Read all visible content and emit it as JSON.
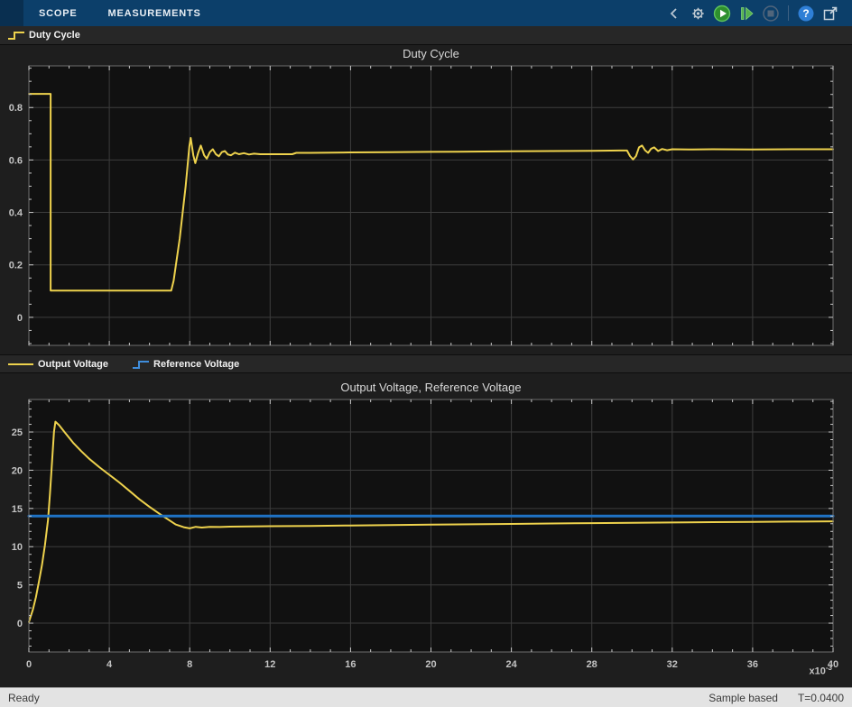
{
  "toolbar": {
    "tabs": [
      {
        "label": "SCOPE"
      },
      {
        "label": "MEASUREMENTS"
      }
    ],
    "icons": [
      "collapse-chevron-icon",
      "settings-gear-icon",
      "run-icon",
      "step-forward-icon",
      "stop-icon",
      "help-icon",
      "popout-icon"
    ]
  },
  "legend1": {
    "items": [
      {
        "label": "Duty Cycle",
        "color": "#eed24d",
        "glyph": "step"
      }
    ]
  },
  "legend2": {
    "items": [
      {
        "label": "Output Voltage",
        "color": "#eed24d",
        "glyph": "line"
      },
      {
        "label": "Reference Voltage",
        "color": "#3f8ddb",
        "glyph": "step"
      }
    ]
  },
  "statusbar": {
    "ready": "Ready",
    "sample_mode": "Sample based",
    "time": "T=0.0400"
  },
  "colors": {
    "toolstrip_bg": "#0c3f6a",
    "figure_bg": "#1e1e1e",
    "plot_bg": "#111111",
    "grid": "#3d3d3d",
    "axis": "#6e6e6e",
    "tick": "#c8c8c8",
    "yellow": "#eed24d",
    "blue": "#1f72c4",
    "status_bg": "#e3e3e3"
  },
  "chart_data": [
    {
      "type": "line",
      "title": "Duty Cycle",
      "xlabel": "",
      "ylabel": "",
      "xlim": [
        0,
        40
      ],
      "ylim": [
        -0.107,
        0.959
      ],
      "xticks": [
        0,
        4,
        8,
        12,
        16,
        20,
        24,
        28,
        32,
        36,
        40
      ],
      "yticks": [
        0,
        0.2,
        0.4,
        0.6,
        0.8
      ],
      "x_minor": 1,
      "y_minor": 0.05,
      "grid": true,
      "show_x_labels": false,
      "x_units_note": "time axis shared with lower plot, x10^-3 s",
      "series": [
        {
          "name": "Duty Cycle",
          "color": "#eed24d",
          "width": 2,
          "points": [
            [
              0,
              0.852
            ],
            [
              1.08,
              0.852
            ],
            [
              1.08,
              0.102
            ],
            [
              7.08,
              0.102
            ],
            [
              7.2,
              0.14
            ],
            [
              7.5,
              0.3
            ],
            [
              7.8,
              0.5
            ],
            [
              7.98,
              0.652
            ],
            [
              8.05,
              0.684
            ],
            [
              8.18,
              0.618
            ],
            [
              8.28,
              0.588
            ],
            [
              8.42,
              0.628
            ],
            [
              8.55,
              0.655
            ],
            [
              8.72,
              0.618
            ],
            [
              8.85,
              0.605
            ],
            [
              9.0,
              0.63
            ],
            [
              9.15,
              0.641
            ],
            [
              9.3,
              0.622
            ],
            [
              9.45,
              0.614
            ],
            [
              9.6,
              0.63
            ],
            [
              9.75,
              0.634
            ],
            [
              9.9,
              0.621
            ],
            [
              10.05,
              0.618
            ],
            [
              10.25,
              0.628
            ],
            [
              10.45,
              0.622
            ],
            [
              10.7,
              0.626
            ],
            [
              10.95,
              0.621
            ],
            [
              11.2,
              0.624
            ],
            [
              11.5,
              0.622
            ],
            [
              12,
              0.622
            ],
            [
              13.1,
              0.622
            ],
            [
              13.3,
              0.627
            ],
            [
              14,
              0.627
            ],
            [
              16,
              0.629
            ],
            [
              18,
              0.63
            ],
            [
              20,
              0.631
            ],
            [
              22,
              0.632
            ],
            [
              24,
              0.633
            ],
            [
              26,
              0.634
            ],
            [
              28,
              0.635
            ],
            [
              29.4,
              0.636
            ],
            [
              29.75,
              0.636
            ],
            [
              29.9,
              0.615
            ],
            [
              30.05,
              0.602
            ],
            [
              30.2,
              0.615
            ],
            [
              30.35,
              0.648
            ],
            [
              30.5,
              0.655
            ],
            [
              30.65,
              0.637
            ],
            [
              30.8,
              0.627
            ],
            [
              30.95,
              0.643
            ],
            [
              31.1,
              0.648
            ],
            [
              31.3,
              0.634
            ],
            [
              31.5,
              0.642
            ],
            [
              31.75,
              0.637
            ],
            [
              32,
              0.641
            ],
            [
              33,
              0.64
            ],
            [
              34,
              0.641
            ],
            [
              36,
              0.64
            ],
            [
              38,
              0.641
            ],
            [
              40,
              0.641
            ]
          ]
        }
      ]
    },
    {
      "type": "line",
      "title": "Output Voltage, Reference Voltage",
      "xlabel": "",
      "ylabel": "",
      "xlim": [
        0,
        40
      ],
      "ylim": [
        -3.77,
        29.25
      ],
      "xticks": [
        0,
        4,
        8,
        12,
        16,
        20,
        24,
        28,
        32,
        36,
        40
      ],
      "yticks": [
        0,
        5,
        10,
        15,
        20,
        25
      ],
      "x_minor": 1,
      "y_minor": 1,
      "grid": true,
      "show_x_labels": true,
      "exponent_prefix": "x10",
      "exponent": "-3",
      "series": [
        {
          "name": "Output Voltage",
          "color": "#eed24d",
          "width": 2,
          "points": [
            [
              0,
              0.15
            ],
            [
              0.2,
              1.8
            ],
            [
              0.35,
              3.4
            ],
            [
              0.5,
              5.4
            ],
            [
              0.65,
              7.6
            ],
            [
              0.8,
              10.2
            ],
            [
              0.95,
              13.5
            ],
            [
              1.05,
              17.0
            ],
            [
              1.15,
              21.0
            ],
            [
              1.25,
              25.0
            ],
            [
              1.32,
              26.35
            ],
            [
              1.5,
              25.9
            ],
            [
              1.8,
              24.9
            ],
            [
              2.2,
              23.6
            ],
            [
              2.6,
              22.5
            ],
            [
              3.0,
              21.5
            ],
            [
              3.5,
              20.4
            ],
            [
              4.0,
              19.4
            ],
            [
              4.5,
              18.4
            ],
            [
              5.0,
              17.3
            ],
            [
              5.5,
              16.2
            ],
            [
              6.0,
              15.2
            ],
            [
              6.5,
              14.3
            ],
            [
              6.9,
              13.6
            ],
            [
              7.3,
              12.9
            ],
            [
              7.7,
              12.55
            ],
            [
              8.0,
              12.4
            ],
            [
              8.3,
              12.6
            ],
            [
              8.6,
              12.5
            ],
            [
              9.0,
              12.6
            ],
            [
              9.5,
              12.58
            ],
            [
              10,
              12.62
            ],
            [
              11,
              12.65
            ],
            [
              12,
              12.68
            ],
            [
              14,
              12.72
            ],
            [
              16,
              12.78
            ],
            [
              18,
              12.82
            ],
            [
              20,
              12.88
            ],
            [
              22,
              12.93
            ],
            [
              24,
              12.98
            ],
            [
              26,
              13.03
            ],
            [
              28,
              13.08
            ],
            [
              30,
              13.12
            ],
            [
              32,
              13.17
            ],
            [
              34,
              13.21
            ],
            [
              36,
              13.25
            ],
            [
              38,
              13.28
            ],
            [
              40,
              13.32
            ]
          ]
        },
        {
          "name": "Reference Voltage",
          "color": "#1f72c4",
          "width": 3,
          "points": [
            [
              0,
              14
            ],
            [
              40,
              14
            ]
          ]
        }
      ]
    }
  ]
}
